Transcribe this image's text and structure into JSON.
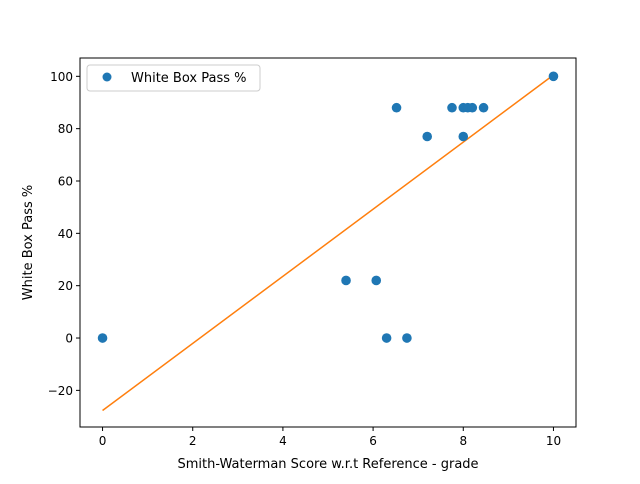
{
  "chart_data": {
    "type": "scatter",
    "xlabel": "Smith-Waterman Score w.r.t Reference - grade",
    "ylabel": "White Box Pass %",
    "xlim": [
      -0.5,
      10.5
    ],
    "ylim": [
      -34,
      107
    ],
    "xticks": [
      0,
      2,
      4,
      6,
      8,
      10
    ],
    "yticks": [
      -20,
      0,
      20,
      40,
      60,
      80,
      100
    ],
    "xtick_labels": [
      "0",
      "2",
      "4",
      "6",
      "8",
      "10"
    ],
    "ytick_labels": [
      "−20",
      "0",
      "20",
      "40",
      "60",
      "80",
      "100"
    ],
    "grid": false,
    "legend_position": "upper-left",
    "series": [
      {
        "name": "White Box Pass %",
        "marker": "circle",
        "color": "#1f77b4",
        "points": [
          {
            "x": 0.0,
            "y": 0
          },
          {
            "x": 5.4,
            "y": 22
          },
          {
            "x": 6.07,
            "y": 22
          },
          {
            "x": 6.3,
            "y": 0
          },
          {
            "x": 6.52,
            "y": 88
          },
          {
            "x": 6.75,
            "y": 0
          },
          {
            "x": 7.2,
            "y": 77
          },
          {
            "x": 7.75,
            "y": 88
          },
          {
            "x": 8.0,
            "y": 77
          },
          {
            "x": 8.0,
            "y": 88
          },
          {
            "x": 8.1,
            "y": 88
          },
          {
            "x": 8.2,
            "y": 88
          },
          {
            "x": 8.45,
            "y": 88
          },
          {
            "x": 10.0,
            "y": 100
          }
        ]
      },
      {
        "marker": "line",
        "color": "#ff7f0e",
        "points": [
          {
            "x": 0.0,
            "y": -27.7
          },
          {
            "x": 10.0,
            "y": 100.5
          }
        ]
      }
    ]
  }
}
